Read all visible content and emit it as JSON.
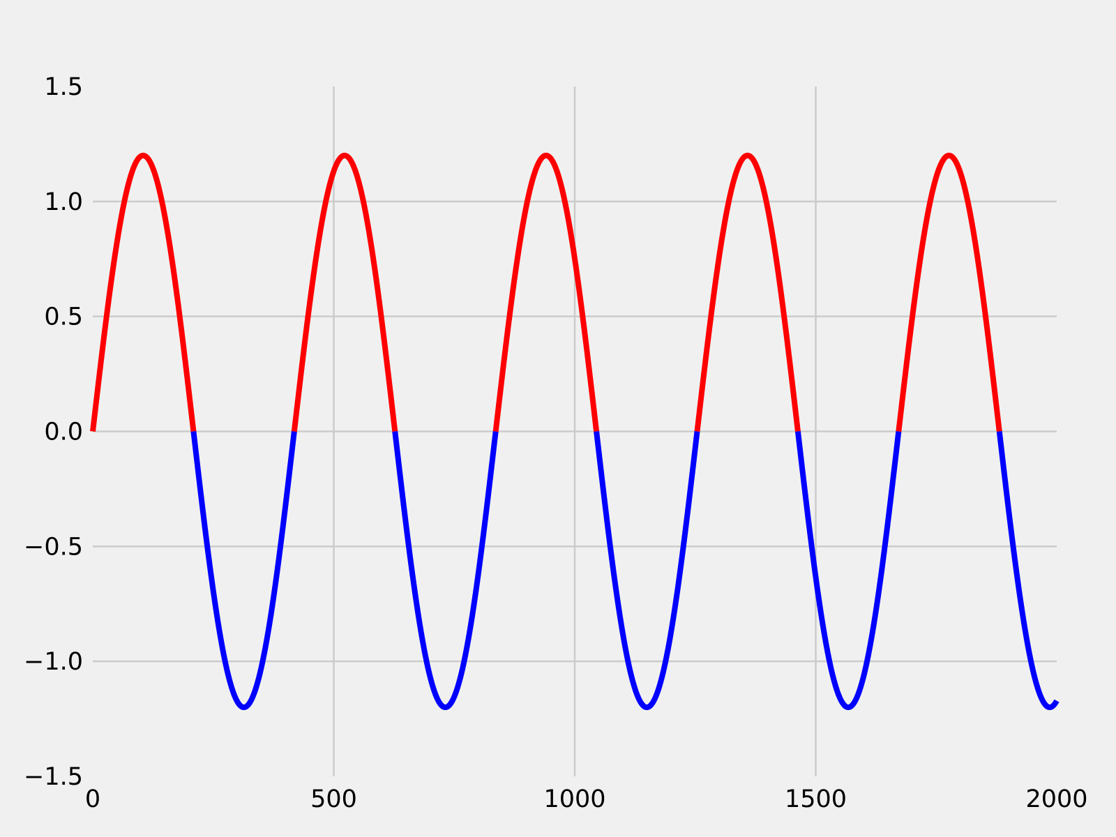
{
  "chart_data": {
    "type": "line",
    "title": "",
    "xlabel": "",
    "ylabel": "",
    "xlim": [
      0,
      2000
    ],
    "ylim": [
      -1.5,
      1.5
    ],
    "x_ticks": [
      {
        "value": 0,
        "label": "0"
      },
      {
        "value": 500,
        "label": "500"
      },
      {
        "value": 1000,
        "label": "1000"
      },
      {
        "value": 1500,
        "label": "1500"
      },
      {
        "value": 2000,
        "label": "2000"
      }
    ],
    "y_ticks": [
      {
        "value": 1.5,
        "label": "1.5"
      },
      {
        "value": 1.0,
        "label": "1.0"
      },
      {
        "value": 0.5,
        "label": "0.5"
      },
      {
        "value": 0.0,
        "label": "0.0"
      },
      {
        "value": -0.5,
        "label": "−0.5"
      },
      {
        "value": -1.0,
        "label": "−1.0"
      },
      {
        "value": -1.5,
        "label": "−1.5"
      }
    ],
    "grid": true,
    "curve": {
      "function": "y = 1.2 * sin(2*pi*x/418)",
      "amplitude": 1.2,
      "period": 418,
      "x_start": 0,
      "x_end": 2000
    },
    "series": [
      {
        "color": "#ff0000",
        "condition": "y >= 0"
      },
      {
        "color": "#0000ff",
        "condition": "y < 0"
      }
    ]
  }
}
